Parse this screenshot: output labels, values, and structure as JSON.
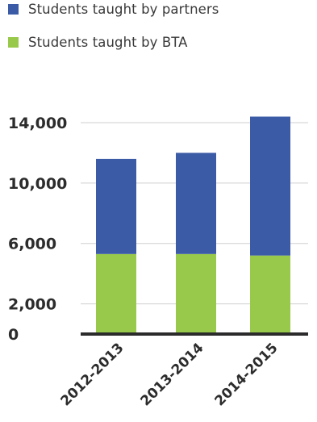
{
  "chart_data": {
    "type": "bar",
    "stacked": true,
    "categories": [
      "2012-2013",
      "2013-2014",
      "2014-2015"
    ],
    "series": [
      {
        "name": "Students taught by BTA",
        "values": [
          5300,
          5300,
          5200
        ],
        "color": "#99c94a"
      },
      {
        "name": "Students taught by partners",
        "values": [
          6300,
          6700,
          9200
        ],
        "color": "#3b5ba6"
      }
    ],
    "legend_order": [
      1,
      0
    ],
    "legend_position": "top-left",
    "y_ticks": [
      0,
      2000,
      6000,
      10000,
      14000
    ],
    "y_tick_labels": [
      "0",
      "2,000",
      "6,000",
      "10,000",
      "14,000"
    ],
    "ylim": [
      0,
      14000
    ],
    "grid": true,
    "title": "",
    "xlabel": "",
    "ylabel": ""
  }
}
